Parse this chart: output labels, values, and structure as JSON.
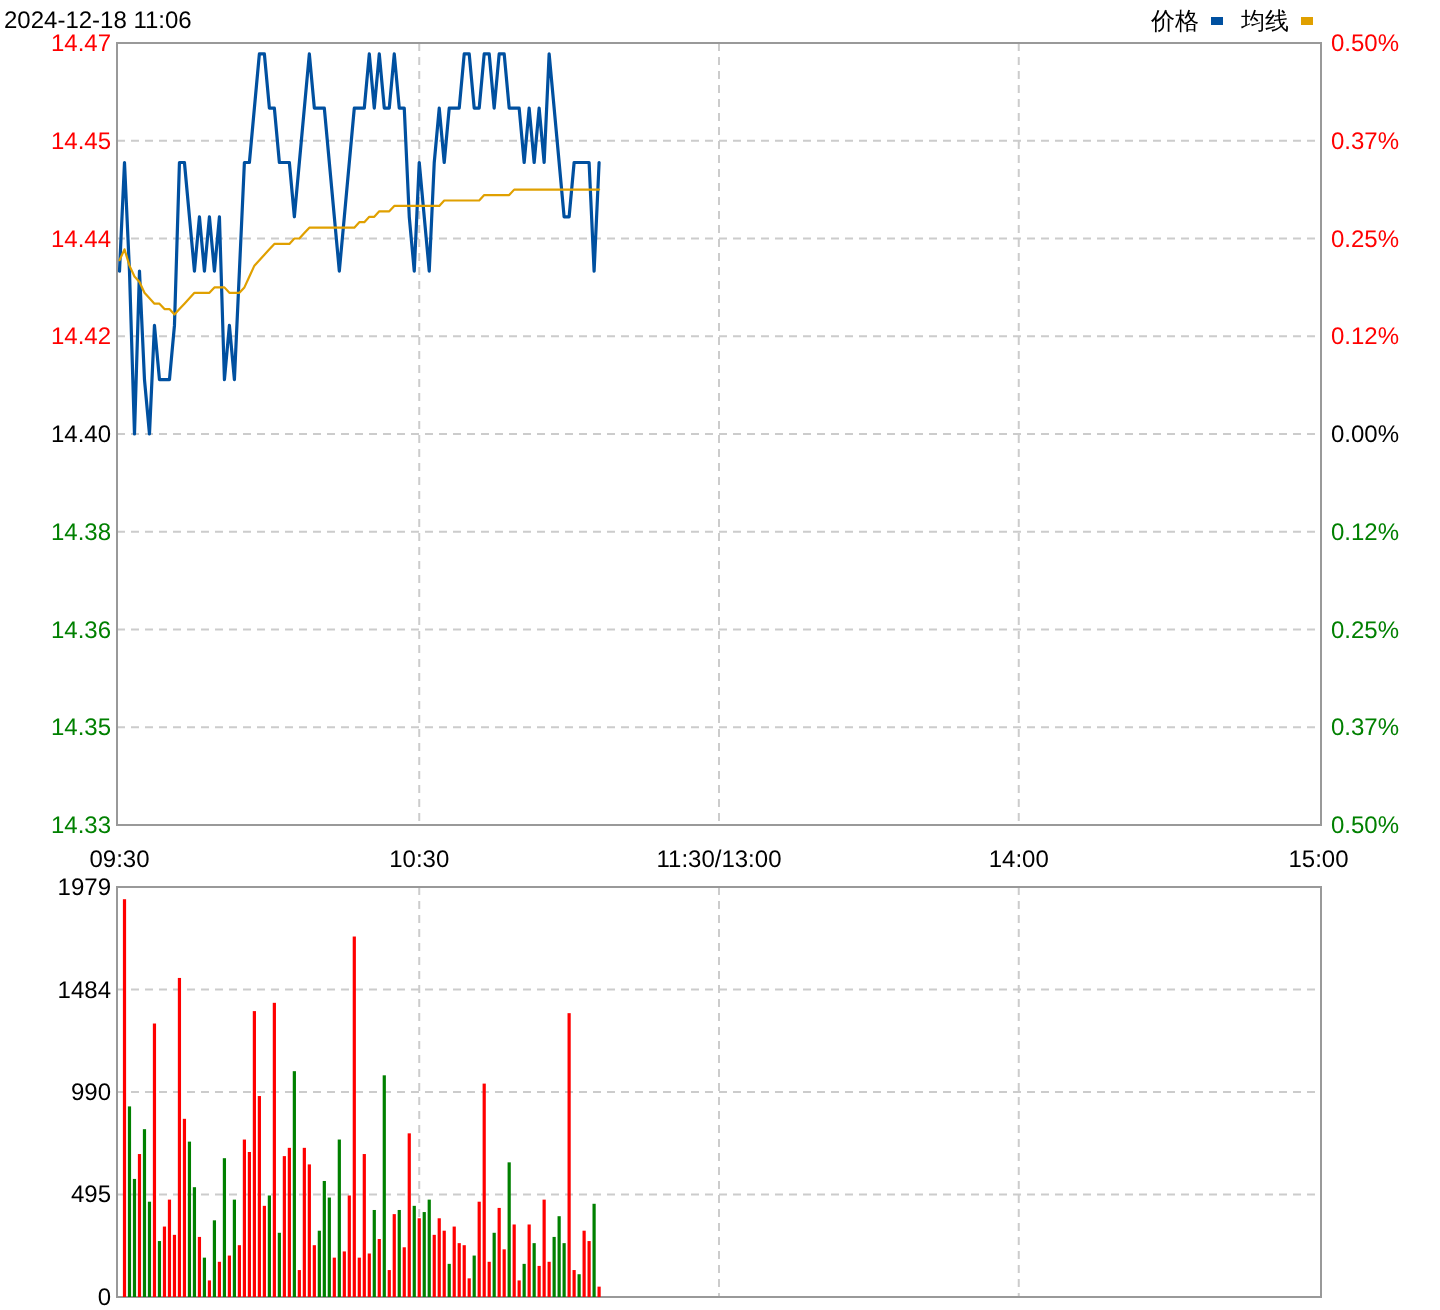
{
  "chart_data": [
    {
      "type": "line",
      "title": "2024-12-18 11:06",
      "legend": "top right",
      "grid": true,
      "categories": [
        "09:30",
        null,
        null,
        null,
        null,
        null,
        null,
        null,
        null,
        null,
        null,
        null,
        null,
        null,
        null,
        null,
        null,
        null,
        null,
        null,
        null,
        null,
        null,
        null,
        null,
        null,
        null,
        null,
        null,
        null,
        null,
        null,
        null,
        null,
        null,
        null,
        null,
        null,
        null,
        null,
        null,
        null,
        null,
        null,
        null,
        null,
        null,
        null,
        null,
        null,
        null,
        null,
        null,
        null,
        null,
        null,
        null,
        null,
        null,
        null,
        "10:30",
        null,
        null,
        null,
        null,
        null,
        null,
        null,
        null,
        null,
        null,
        null,
        null,
        null,
        null,
        null,
        null,
        null,
        null,
        null,
        null,
        null,
        null,
        null,
        null,
        null,
        null,
        null,
        null,
        null,
        null,
        null,
        null,
        null,
        null,
        null,
        null,
        null,
        null,
        null,
        null,
        null,
        null,
        null,
        null,
        null,
        null,
        null,
        null,
        null,
        null,
        null,
        null,
        null,
        null,
        null,
        null,
        null,
        null,
        null,
        "11:30/13:00",
        null,
        null,
        null,
        null,
        null,
        null,
        null,
        null,
        null,
        null,
        null,
        null,
        null,
        null,
        null,
        null,
        null,
        null,
        null,
        null,
        null,
        null,
        null,
        null,
        null,
        null,
        null,
        null,
        null,
        null,
        null,
        null,
        null,
        null,
        null,
        null,
        null,
        null,
        null,
        null,
        null,
        null,
        null,
        null,
        null,
        null,
        null,
        null,
        null,
        null,
        null,
        null,
        null,
        null,
        null,
        null,
        null,
        null,
        null,
        "14:00",
        null,
        null,
        null,
        null,
        null,
        null,
        null,
        null,
        null,
        null,
        null,
        null,
        null,
        null,
        null,
        null,
        null,
        null,
        null,
        null,
        null,
        null,
        null,
        null,
        null,
        null,
        null,
        null,
        null,
        null,
        null,
        null,
        null,
        null,
        null,
        null,
        null,
        null,
        null,
        null,
        null,
        null,
        null,
        null,
        null,
        null,
        null,
        null,
        null,
        null,
        null,
        null,
        null,
        null,
        null,
        null,
        null,
        null,
        null,
        "15:00"
      ],
      "ylim": [
        14.328,
        14.472
      ],
      "yticks": [
        {
          "value": 14.328,
          "label": "14.33"
        },
        {
          "value": 14.346,
          "label": "14.35"
        },
        {
          "value": 14.364,
          "label": "14.36"
        },
        {
          "value": 14.382,
          "label": "14.38"
        },
        {
          "value": 14.4,
          "label": "14.40"
        },
        {
          "value": 14.418,
          "label": "14.42"
        },
        {
          "value": 14.436,
          "label": "14.44"
        },
        {
          "value": 14.454,
          "label": "14.45"
        },
        {
          "value": 14.472,
          "label": "14.47"
        }
      ],
      "y2lim": [
        -0.5,
        0.5
      ],
      "y2ticks": [
        {
          "value": -0.5,
          "label": "0.50%"
        },
        {
          "value": -0.375,
          "label": "0.37%"
        },
        {
          "value": -0.25,
          "label": "0.25%"
        },
        {
          "value": -0.125,
          "label": "0.12%"
        },
        {
          "value": 0,
          "label": "0.00%"
        },
        {
          "value": 0.125,
          "label": "0.12%"
        },
        {
          "value": 0.25,
          "label": "0.25%"
        },
        {
          "value": 0.375,
          "label": "0.37%"
        },
        {
          "value": 0.5,
          "label": "0.50%"
        }
      ],
      "series": [
        {
          "name": "价格",
          "color": "#0050a0",
          "values": [
            14.43,
            14.45,
            14.43,
            14.4,
            14.43,
            14.41,
            14.4,
            14.42,
            14.41,
            14.41,
            14.41,
            14.42,
            14.45,
            14.45,
            14.44,
            14.43,
            14.44,
            14.43,
            14.44,
            14.43,
            14.44,
            14.41,
            14.42,
            14.41,
            14.43,
            14.45,
            14.45,
            14.46,
            14.47,
            14.47,
            14.46,
            14.46,
            14.45,
            14.45,
            14.45,
            14.44,
            14.45,
            14.46,
            14.47,
            14.46,
            14.46,
            14.46,
            14.45,
            14.44,
            14.43,
            14.44,
            14.45,
            14.46,
            14.46,
            14.46,
            14.47,
            14.46,
            14.47,
            14.46,
            14.46,
            14.47,
            14.46,
            14.46,
            14.44,
            14.43,
            14.45,
            14.44,
            14.43,
            14.45,
            14.46,
            14.45,
            14.46,
            14.46,
            14.46,
            14.47,
            14.47,
            14.46,
            14.46,
            14.47,
            14.47,
            14.46,
            14.47,
            14.47,
            14.46,
            14.46,
            14.46,
            14.45,
            14.46,
            14.45,
            14.46,
            14.45,
            14.47,
            14.46,
            14.45,
            14.44,
            14.44,
            14.45,
            14.45,
            14.45,
            14.45,
            14.43,
            14.45,
            null,
            null,
            null,
            null,
            null,
            null,
            null,
            null,
            null,
            null,
            null,
            null,
            null,
            null,
            null,
            null,
            null,
            null,
            null,
            null,
            null,
            null,
            null,
            null,
            null,
            null,
            null,
            null,
            null,
            null,
            null,
            null,
            null,
            null,
            null,
            null,
            null,
            null,
            null,
            null,
            null,
            null,
            null,
            null,
            null,
            null,
            null,
            null,
            null,
            null,
            null,
            null,
            null,
            null,
            null,
            null,
            null,
            null,
            null,
            null,
            null,
            null,
            null,
            null,
            null,
            null,
            null,
            null,
            null,
            null,
            null,
            null,
            null,
            null,
            null,
            null,
            null,
            null,
            null,
            null,
            null,
            null,
            null,
            null,
            null,
            null,
            null,
            null,
            null,
            null,
            null,
            null,
            null,
            null,
            null,
            null,
            null,
            null,
            null,
            null,
            null,
            null,
            null,
            null,
            null,
            null,
            null,
            null,
            null,
            null,
            null,
            null,
            null,
            null,
            null,
            null,
            null,
            null,
            null,
            null,
            null,
            null,
            null,
            null,
            null,
            null,
            null,
            null,
            null,
            null,
            null,
            null,
            null,
            null,
            null,
            null,
            null,
            null,
            null,
            null,
            null,
            null,
            null,
            null
          ]
        },
        {
          "name": "均线",
          "color": "#e0a000",
          "values": [
            14.432,
            14.434,
            14.431,
            14.429,
            14.428,
            14.426,
            14.425,
            14.424,
            14.424,
            14.423,
            14.423,
            14.422,
            14.423,
            14.424,
            14.425,
            14.426,
            14.426,
            14.426,
            14.426,
            14.427,
            14.427,
            14.427,
            14.426,
            14.426,
            14.426,
            14.427,
            14.429,
            14.431,
            14.432,
            14.433,
            14.434,
            14.435,
            14.435,
            14.435,
            14.435,
            14.436,
            14.436,
            14.437,
            14.438,
            14.438,
            14.438,
            14.438,
            14.438,
            14.438,
            14.438,
            14.438,
            14.438,
            14.438,
            14.439,
            14.439,
            14.44,
            14.44,
            14.441,
            14.441,
            14.441,
            14.442,
            14.442,
            14.442,
            14.442,
            14.442,
            14.442,
            14.442,
            14.442,
            14.442,
            14.442,
            14.443,
            14.443,
            14.443,
            14.443,
            14.443,
            14.443,
            14.443,
            14.443,
            14.444,
            14.444,
            14.444,
            14.444,
            14.444,
            14.444,
            14.445,
            14.445,
            14.445,
            14.445,
            14.445,
            14.445,
            14.445,
            14.445,
            14.445,
            14.445,
            14.445,
            14.445,
            14.445,
            14.445,
            14.445,
            14.445,
            14.445,
            14.445,
            null,
            null,
            null,
            null,
            null,
            null,
            null,
            null,
            null,
            null,
            null,
            null,
            null,
            null,
            null,
            null,
            null,
            null,
            null,
            null,
            null,
            null,
            null,
            null,
            null,
            null,
            null,
            null,
            null,
            null,
            null,
            null,
            null,
            null,
            null,
            null,
            null,
            null,
            null,
            null,
            null,
            null,
            null,
            null,
            null,
            null,
            null,
            null,
            null,
            null,
            null,
            null,
            null,
            null,
            null,
            null,
            null,
            null,
            null,
            null,
            null,
            null,
            null,
            null,
            null,
            null,
            null,
            null,
            null,
            null,
            null,
            null,
            null,
            null,
            null,
            null,
            null,
            null,
            null,
            null,
            null,
            null,
            null,
            null,
            null,
            null,
            null,
            null,
            null,
            null,
            null,
            null,
            null,
            null,
            null,
            null,
            null,
            null,
            null,
            null,
            null,
            null,
            null,
            null,
            null,
            null,
            null,
            null,
            null,
            null,
            null,
            null,
            null,
            null,
            null,
            null,
            null,
            null,
            null,
            null,
            null,
            null,
            null,
            null,
            null,
            null,
            null,
            null,
            null,
            null,
            null,
            null,
            null,
            null,
            null,
            null,
            null,
            null,
            null,
            null,
            null,
            null,
            null,
            null
          ]
        }
      ]
    },
    {
      "type": "bar",
      "grid": true,
      "tick_labels": "y",
      "categories": [
        null,
        null,
        null,
        null,
        null,
        null,
        null,
        null,
        null,
        null,
        null,
        null,
        null,
        null,
        null,
        null,
        null,
        null,
        null,
        null,
        null,
        null,
        null,
        null,
        null,
        null,
        null,
        null,
        null,
        null,
        null,
        null,
        null,
        null,
        null,
        null,
        null,
        null,
        null,
        null,
        null,
        null,
        null,
        null,
        null,
        null,
        null,
        null,
        null,
        null,
        null,
        null,
        null,
        null,
        null,
        null,
        null,
        null,
        null,
        null,
        null,
        null,
        null,
        null,
        null,
        null,
        null,
        null,
        null,
        null,
        null,
        null,
        null,
        null,
        null,
        null,
        null,
        null,
        null,
        null,
        null,
        null,
        null,
        null,
        null,
        null,
        null,
        null,
        null,
        null,
        null,
        null,
        null,
        null,
        null,
        null,
        null,
        null,
        null,
        null,
        null,
        null,
        null,
        null,
        null,
        null,
        null,
        null,
        null,
        null,
        null,
        null,
        null,
        null,
        null,
        null,
        null,
        null,
        null,
        null,
        null,
        null,
        null,
        null,
        null,
        null,
        null,
        null,
        null,
        null,
        null,
        null,
        null,
        null,
        null,
        null,
        null,
        null,
        null,
        null,
        null,
        null,
        null,
        null,
        null,
        null,
        null,
        null,
        null,
        null,
        null,
        null,
        null,
        null,
        null,
        null,
        null,
        null,
        null,
        null,
        null,
        null,
        null,
        null,
        null,
        null,
        null,
        null,
        null,
        null,
        null,
        null,
        null,
        null,
        null,
        null,
        null,
        null,
        null,
        null,
        null,
        null,
        null,
        null,
        null,
        null,
        null,
        null,
        null,
        null,
        null,
        null,
        null,
        null,
        null,
        null,
        null,
        null,
        null,
        null,
        null,
        null,
        null,
        null,
        null,
        null,
        null,
        null,
        null,
        null,
        null,
        null,
        null,
        null,
        null,
        null,
        null,
        null,
        null,
        null,
        null,
        null,
        null,
        null,
        null,
        null,
        null,
        null,
        null,
        null,
        null,
        null,
        null,
        null,
        null,
        null,
        null,
        null,
        null,
        null,
        null
      ],
      "ylim": [
        0,
        1979
      ],
      "yticks": [
        0,
        495,
        990,
        1484,
        1979
      ],
      "values": [
        null,
        1920,
        920,
        570,
        690,
        810,
        460,
        1320,
        270,
        340,
        470,
        300,
        1540,
        860,
        750,
        530,
        290,
        190,
        80,
        370,
        170,
        670,
        200,
        470,
        250,
        760,
        700,
        1380,
        970,
        440,
        490,
        1420,
        310,
        680,
        720,
        1090,
        130,
        720,
        640,
        250,
        320,
        560,
        480,
        190,
        760,
        220,
        490,
        1740,
        190,
        690,
        210,
        420,
        280,
        1070,
        130,
        400,
        420,
        240,
        790,
        440,
        380,
        410,
        470,
        300,
        380,
        320,
        160,
        340,
        260,
        250,
        90,
        200,
        460,
        1030,
        170,
        310,
        430,
        230,
        650,
        350,
        80,
        160,
        350,
        260,
        150,
        470,
        170,
        290,
        390,
        260,
        1370,
        130,
        110,
        320,
        270,
        450,
        50,
        null,
        null,
        null,
        null,
        null,
        null,
        null,
        null,
        null,
        null,
        null,
        null,
        null,
        null,
        null,
        null,
        null,
        null,
        null,
        null,
        null,
        null,
        null,
        null,
        null,
        null,
        null,
        null,
        null,
        null,
        null,
        null,
        null,
        null,
        null,
        null,
        null,
        null,
        null,
        null,
        null,
        null,
        null,
        null,
        null,
        null,
        null,
        null,
        null,
        null,
        null,
        null,
        null,
        null,
        null,
        null,
        null,
        null,
        null,
        null,
        null,
        null,
        null,
        null,
        null,
        null,
        null,
        null,
        null,
        null,
        null,
        null,
        null,
        null,
        null,
        null,
        null,
        null,
        null,
        null,
        null,
        null,
        null,
        null,
        null,
        null,
        null,
        null,
        null,
        null,
        null,
        null,
        null,
        null,
        null,
        null,
        null,
        null,
        null,
        null,
        null,
        null,
        null,
        null,
        null,
        null,
        null,
        null,
        null,
        null,
        null,
        null,
        null,
        null,
        null,
        null,
        null,
        null,
        null,
        null,
        null,
        null,
        null,
        null,
        null,
        null,
        null,
        null,
        null,
        null,
        null,
        null,
        null,
        null,
        null,
        null,
        null,
        null,
        null,
        null,
        null,
        null,
        null,
        null
      ],
      "colors": [
        null,
        "#ff0000",
        "#008000",
        "#008000",
        "#ff0000",
        "#008000",
        "#008000",
        "#ff0000",
        "#008000",
        "#ff0000",
        "#ff0000",
        "#ff0000",
        "#ff0000",
        "#ff0000",
        "#008000",
        "#008000",
        "#ff0000",
        "#008000",
        "#ff0000",
        "#008000",
        "#ff0000",
        "#008000",
        "#ff0000",
        "#008000",
        "#ff0000",
        "#ff0000",
        "#ff0000",
        "#ff0000",
        "#ff0000",
        "#ff0000",
        "#008000",
        "#ff0000",
        "#008000",
        "#ff0000",
        "#ff0000",
        "#008000",
        "#ff0000",
        "#ff0000",
        "#ff0000",
        "#ff0000",
        "#008000",
        "#008000",
        "#008000",
        "#ff0000",
        "#008000",
        "#ff0000",
        "#ff0000",
        "#ff0000",
        "#ff0000",
        "#ff0000",
        "#ff0000",
        "#008000",
        "#ff0000",
        "#008000",
        "#ff0000",
        "#ff0000",
        "#008000",
        "#ff0000",
        "#ff0000",
        "#008000",
        "#ff0000",
        "#008000",
        "#008000",
        "#ff0000",
        "#ff0000",
        "#ff0000",
        "#008000",
        "#ff0000",
        "#ff0000",
        "#ff0000",
        "#ff0000",
        "#008000",
        "#ff0000",
        "#ff0000",
        "#ff0000",
        "#008000",
        "#ff0000",
        "#ff0000",
        "#008000",
        "#ff0000",
        "#ff0000",
        "#008000",
        "#ff0000",
        "#008000",
        "#ff0000",
        "#ff0000",
        "#ff0000",
        "#008000",
        "#008000",
        "#008000",
        "#ff0000",
        "#ff0000",
        "#008000",
        "#ff0000",
        "#ff0000",
        "#008000",
        "#ff0000",
        null,
        null,
        null,
        null,
        null,
        null,
        null,
        null,
        null,
        null,
        null,
        null,
        null,
        null,
        null,
        null,
        null,
        null,
        null,
        null,
        null,
        null,
        null,
        null,
        null,
        null,
        null,
        null,
        null,
        null,
        null,
        null,
        null,
        null,
        null,
        null,
        null,
        null,
        null,
        null,
        null,
        null,
        null,
        null,
        null,
        null,
        null,
        null,
        null,
        null,
        null,
        null,
        null,
        null,
        null,
        null,
        null,
        null,
        null,
        null,
        null,
        null,
        null,
        null,
        null,
        null,
        null,
        null,
        null,
        null,
        null,
        null,
        null,
        null,
        null,
        null,
        null,
        null,
        null,
        null,
        null,
        null,
        null,
        null,
        null,
        null,
        null,
        null,
        null,
        null,
        null,
        null,
        null,
        null,
        null,
        null,
        null,
        null,
        null,
        null,
        null,
        null,
        null,
        null,
        null,
        null,
        null,
        null,
        null,
        null,
        null,
        null,
        null,
        null,
        null,
        null,
        null,
        null,
        null,
        null,
        null,
        null,
        null,
        null,
        null,
        null,
        null,
        null,
        null,
        null,
        null,
        null,
        null,
        null,
        null,
        null,
        null,
        null,
        null,
        null,
        null,
        null,
        null,
        null
      ]
    }
  ]
}
